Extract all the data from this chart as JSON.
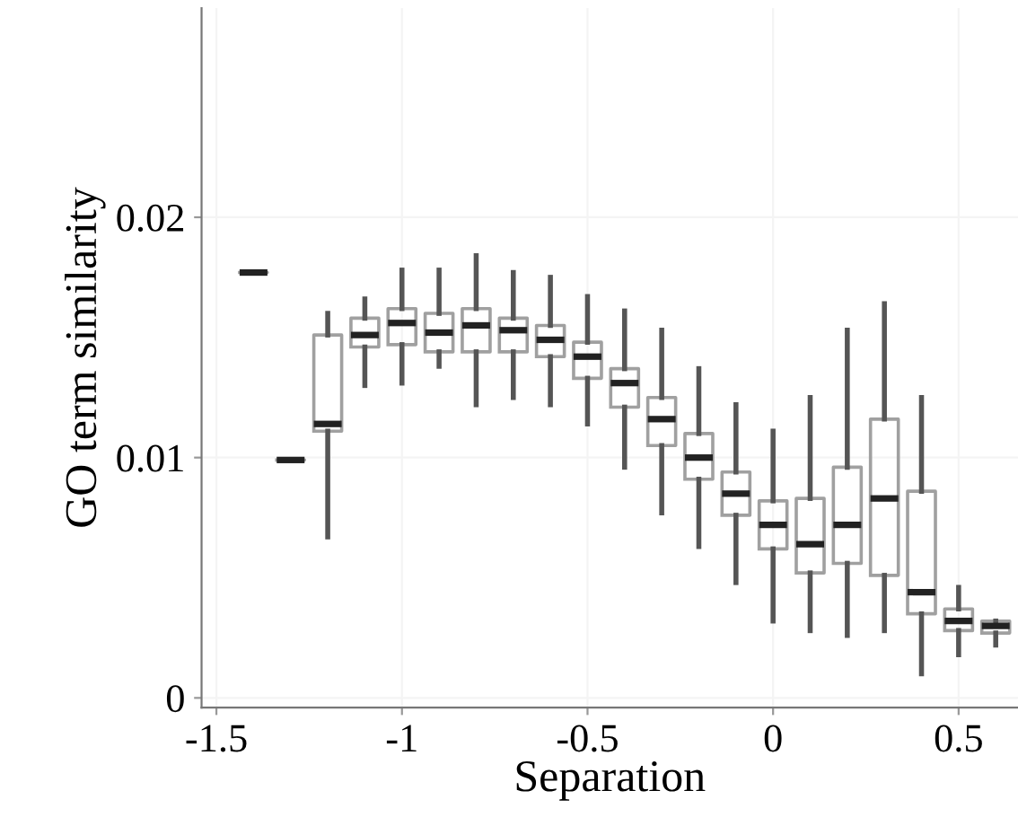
{
  "chart_data": {
    "type": "box",
    "xlabel": "Separation",
    "ylabel": "GO term similarity",
    "x": [
      -1.4,
      -1.3,
      -1.2,
      -1.1,
      -1.0,
      -0.9,
      -0.8,
      -0.7,
      -0.6,
      -0.5,
      -0.4,
      -0.3,
      -0.2,
      -0.1,
      0.0,
      0.1,
      0.2,
      0.3,
      0.4,
      0.5,
      0.6
    ],
    "boxes": [
      {
        "low": 0.0177,
        "q1": 0.0177,
        "median": 0.0177,
        "q3": 0.0177,
        "high": 0.0177
      },
      {
        "low": 0.0099,
        "q1": 0.0099,
        "median": 0.0099,
        "q3": 0.0099,
        "high": 0.0099
      },
      {
        "low": 0.0067,
        "q1": 0.0111,
        "median": 0.0114,
        "q3": 0.0151,
        "high": 0.016
      },
      {
        "low": 0.013,
        "q1": 0.0146,
        "median": 0.0151,
        "q3": 0.0158,
        "high": 0.0166
      },
      {
        "low": 0.0131,
        "q1": 0.0147,
        "median": 0.0156,
        "q3": 0.0162,
        "high": 0.0178
      },
      {
        "low": 0.0138,
        "q1": 0.0144,
        "median": 0.0152,
        "q3": 0.016,
        "high": 0.0178
      },
      {
        "low": 0.0122,
        "q1": 0.0144,
        "median": 0.0155,
        "q3": 0.0162,
        "high": 0.0184
      },
      {
        "low": 0.0125,
        "q1": 0.0144,
        "median": 0.0153,
        "q3": 0.0158,
        "high": 0.0177
      },
      {
        "low": 0.0122,
        "q1": 0.0142,
        "median": 0.0149,
        "q3": 0.0155,
        "high": 0.0175
      },
      {
        "low": 0.0114,
        "q1": 0.0133,
        "median": 0.0142,
        "q3": 0.0148,
        "high": 0.0167
      },
      {
        "low": 0.0096,
        "q1": 0.0121,
        "median": 0.0131,
        "q3": 0.0137,
        "high": 0.0161
      },
      {
        "low": 0.0077,
        "q1": 0.0105,
        "median": 0.0116,
        "q3": 0.0125,
        "high": 0.0153
      },
      {
        "low": 0.0063,
        "q1": 0.0091,
        "median": 0.01,
        "q3": 0.011,
        "high": 0.0137
      },
      {
        "low": 0.0048,
        "q1": 0.0076,
        "median": 0.0085,
        "q3": 0.0094,
        "high": 0.0122
      },
      {
        "low": 0.0032,
        "q1": 0.0062,
        "median": 0.0072,
        "q3": 0.0082,
        "high": 0.0111
      },
      {
        "low": 0.0028,
        "q1": 0.0052,
        "median": 0.0064,
        "q3": 0.0083,
        "high": 0.0125
      },
      {
        "low": 0.0026,
        "q1": 0.0056,
        "median": 0.0072,
        "q3": 0.0096,
        "high": 0.0153
      },
      {
        "low": 0.0028,
        "q1": 0.0051,
        "median": 0.0083,
        "q3": 0.0116,
        "high": 0.0164
      },
      {
        "low": 0.001,
        "q1": 0.0035,
        "median": 0.0044,
        "q3": 0.0086,
        "high": 0.0125
      },
      {
        "low": 0.0018,
        "q1": 0.0028,
        "median": 0.0032,
        "q3": 0.0037,
        "high": 0.0046
      },
      {
        "low": 0.0022,
        "q1": 0.0027,
        "median": 0.003,
        "q3": 0.0032,
        "high": 0.0032
      }
    ],
    "color": "#a0a0a0",
    "xlim": [
      -1.54,
      0.66
    ],
    "ylim": [
      -0.0004,
      0.0287
    ],
    "xticks": [
      -1.5,
      -1,
      -0.5,
      0,
      0.5
    ],
    "yticks": [
      0,
      0.01,
      0.02
    ],
    "grid": true
  }
}
